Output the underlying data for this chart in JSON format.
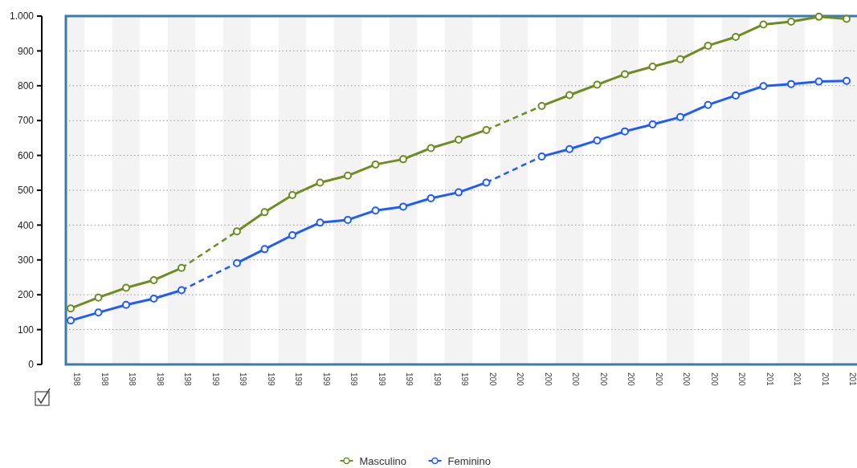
{
  "chart_data": {
    "type": "line",
    "categories": [
      "198",
      "198",
      "198",
      "198",
      "198",
      "199",
      "199",
      "199",
      "199",
      "199",
      "199",
      "199",
      "199",
      "199",
      "199",
      "200",
      "200",
      "200",
      "200",
      "200",
      "200",
      "200",
      "200",
      "200",
      "200",
      "201",
      "201",
      "201",
      "201"
    ],
    "series": [
      {
        "name": "Masculino",
        "color": "#6f8c22",
        "values": [
          161,
          192,
          220,
          242,
          277,
          null,
          382,
          437,
          486,
          522,
          542,
          574,
          589,
          621,
          645,
          673,
          null,
          742,
          773,
          803,
          833,
          855,
          876,
          915,
          940,
          976,
          984,
          998,
          992
        ]
      },
      {
        "name": "Feminino",
        "color": "#1f5bff",
        "values": [
          126,
          149,
          171,
          189,
          213,
          null,
          291,
          331,
          371,
          407,
          415,
          442,
          453,
          477,
          494,
          522,
          null,
          597,
          618,
          643,
          669,
          689,
          710,
          745,
          772,
          799,
          805,
          812,
          814
        ]
      }
    ],
    "ylim": [
      0,
      1000
    ],
    "yticks": [
      0,
      100,
      200,
      300,
      400,
      500,
      600,
      700,
      800,
      900,
      {
        "value": 1000,
        "label": "1.000"
      }
    ],
    "grid": "y",
    "legend": "bottom",
    "marker": "circle",
    "line_style": "solid"
  }
}
